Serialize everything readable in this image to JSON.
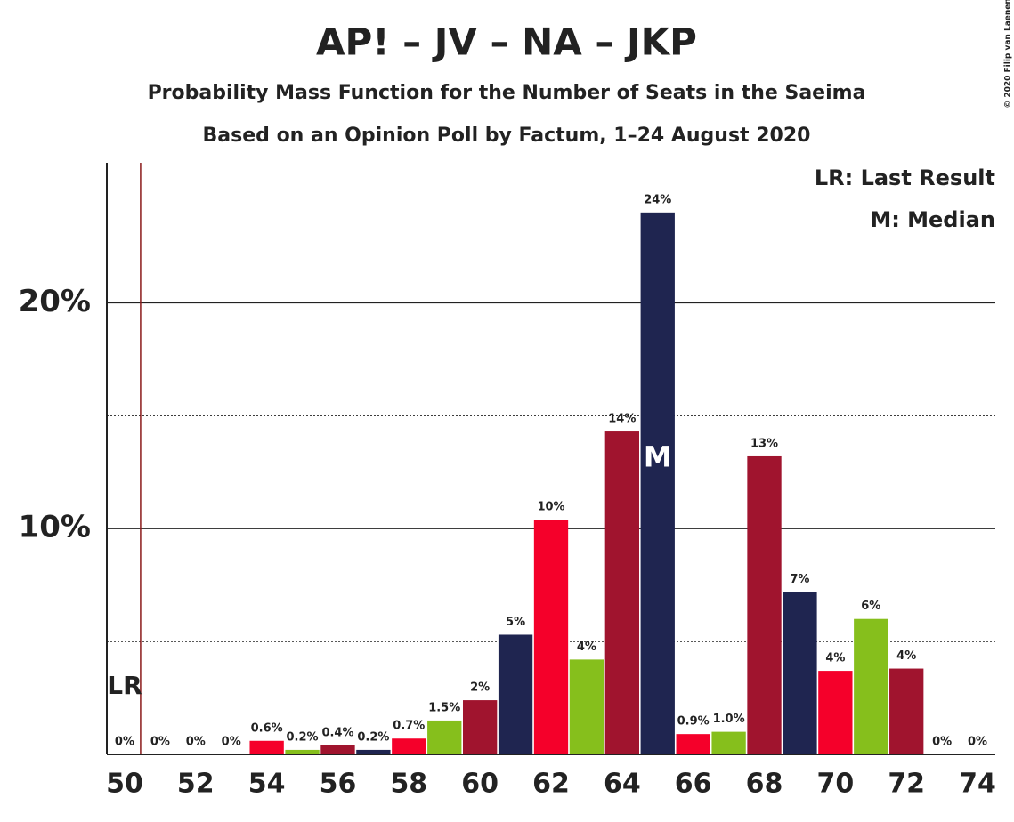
{
  "chart_data": {
    "type": "bar",
    "title": "AP! – JV – NA – JKP",
    "subtitle": "Probability Mass Function for the Number of Seats in the Saeima",
    "subtitle2": "Based on an Opinion Poll by Factum, 1–24 August 2020",
    "copyright": "© 2020 Filip van Laenen",
    "legend": [
      "LR: Last Result",
      "M: Median"
    ],
    "categories": [
      50,
      null,
      52,
      null,
      54,
      null,
      56,
      null,
      58,
      null,
      60,
      null,
      62,
      null,
      64,
      null,
      66,
      null,
      68,
      null,
      70,
      null,
      72,
      null,
      74
    ],
    "values": [
      0,
      0,
      0,
      0,
      0.6,
      0.2,
      0.4,
      0.2,
      0.7,
      1.5,
      2.4,
      5.3,
      10.4,
      4.2,
      14.3,
      24.0,
      0.9,
      1.0,
      13.2,
      7.2,
      3.7,
      6.0,
      3.8,
      0,
      0
    ],
    "value_labels": [
      "0%",
      "0%",
      "0%",
      "0%",
      "0.6%",
      "0.2%",
      "0.4%",
      "0.2%",
      "0.7%",
      "1.5%",
      "2%",
      "5%",
      "10%",
      "4%",
      "14%",
      "24%",
      "0.9%",
      "1.0%",
      "13%",
      "7%",
      "4%",
      "6%",
      "4%",
      "0%",
      "0%"
    ],
    "colors": [
      "#f5002a",
      "#86bf1c",
      "#a0142e",
      "#1f2550"
    ],
    "ylim": [
      0,
      26.2
    ],
    "yticks": [
      {
        "value": 10,
        "label": "10%"
      },
      {
        "value": 20,
        "label": "20%"
      }
    ],
    "minor_yticks": [
      5,
      15
    ],
    "grid": true,
    "last_result_index": 0,
    "last_result_label": "LR",
    "median_index": 15,
    "median_label": "M"
  }
}
